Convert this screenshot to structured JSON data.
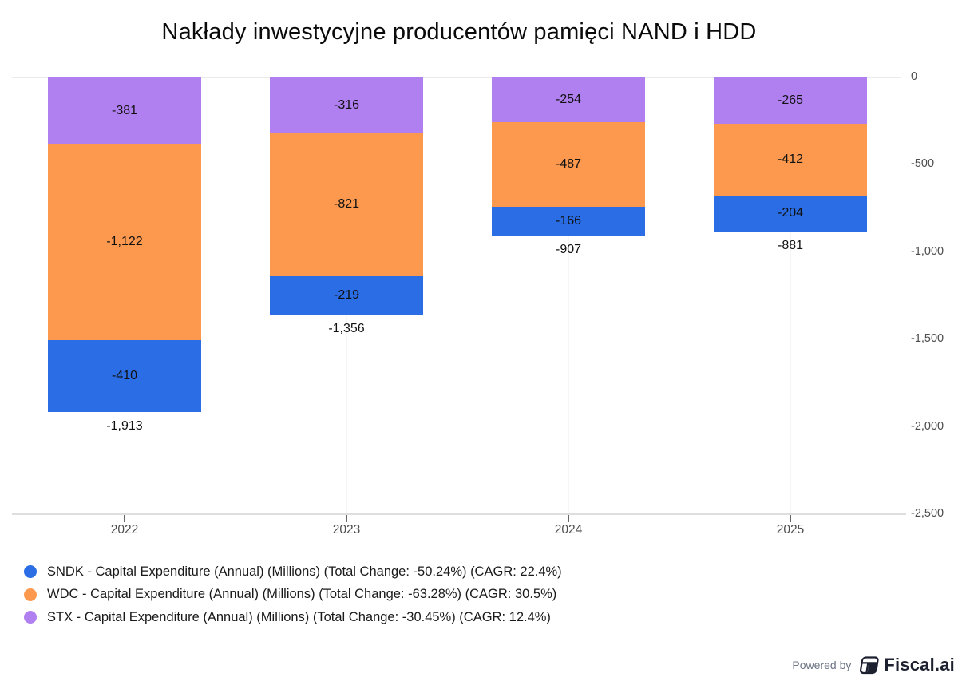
{
  "title": "Nakłady inwestycyjne producentów pamięci NAND i HDD",
  "chart_data": {
    "type": "bar",
    "stacked": true,
    "orientation": "vertical-negative",
    "title": "Nakłady inwestycyjne producentów pamięci NAND i HDD",
    "categories": [
      "2022",
      "2023",
      "2024",
      "2025"
    ],
    "series": [
      {
        "name": "SNDK",
        "color": "#2a6de4",
        "values": [
          -410,
          -219,
          -166,
          -204
        ]
      },
      {
        "name": "WDC",
        "color": "#fd994e",
        "values": [
          -1122,
          -821,
          -487,
          -412
        ]
      },
      {
        "name": "STX",
        "color": "#b07ff0",
        "values": [
          -381,
          -316,
          -254,
          -265
        ]
      }
    ],
    "stack_order_from_zero": [
      "STX",
      "WDC",
      "SNDK"
    ],
    "totals": [
      -1913,
      -1356,
      -907,
      -881
    ],
    "stacks": [
      {
        "category": "2022",
        "total_label": "-1,913",
        "segments": [
          {
            "series": "STX",
            "value": -381,
            "label": "-381"
          },
          {
            "series": "WDC",
            "value": -1122,
            "label": "-1,122"
          },
          {
            "series": "SNDK",
            "value": -410,
            "label": "-410"
          }
        ]
      },
      {
        "category": "2023",
        "total_label": "-1,356",
        "segments": [
          {
            "series": "STX",
            "value": -316,
            "label": "-316"
          },
          {
            "series": "WDC",
            "value": -821,
            "label": "-821"
          },
          {
            "series": "SNDK",
            "value": -219,
            "label": "-219"
          }
        ]
      },
      {
        "category": "2024",
        "total_label": "-907",
        "segments": [
          {
            "series": "STX",
            "value": -254,
            "label": "-254"
          },
          {
            "series": "WDC",
            "value": -487,
            "label": "-487"
          },
          {
            "series": "SNDK",
            "value": -166,
            "label": "-166"
          }
        ]
      },
      {
        "category": "2025",
        "total_label": "-881",
        "segments": [
          {
            "series": "STX",
            "value": -265,
            "label": "-265"
          },
          {
            "series": "WDC",
            "value": -412,
            "label": "-412"
          },
          {
            "series": "SNDK",
            "value": -204,
            "label": "-204"
          }
        ]
      }
    ],
    "y_axis": {
      "side": "right",
      "ticks": [
        {
          "value": 0,
          "label": "0"
        },
        {
          "value": -500,
          "label": "-500"
        },
        {
          "value": -1000,
          "label": "-1,000"
        },
        {
          "value": -1500,
          "label": "-1,500"
        },
        {
          "value": -2000,
          "label": "-2,000"
        },
        {
          "value": -2500,
          "label": "-2,500"
        }
      ]
    },
    "ylim": [
      -2500,
      0
    ],
    "grid": {
      "horizontal": true,
      "vertical_faint": true
    },
    "legend_position": "bottom-left"
  },
  "legend": {
    "items": [
      {
        "name": "SNDK",
        "color": "#2a6de4",
        "label": "SNDK - Capital Expenditure (Annual) (Millions) (Total Change: -50.24%) (CAGR: 22.4%)"
      },
      {
        "name": "WDC",
        "color": "#fd994e",
        "label": "WDC - Capital Expenditure (Annual) (Millions) (Total Change: -63.28%) (CAGR: 30.5%)"
      },
      {
        "name": "STX",
        "color": "#b07ff0",
        "label": "STX - Capital Expenditure (Annual) (Millions) (Total Change: -30.45%) (CAGR: 12.4%)"
      }
    ]
  },
  "footer": {
    "powered_by": "Powered by",
    "brand": "Fiscal.ai",
    "brand_color": "#1c202f"
  }
}
